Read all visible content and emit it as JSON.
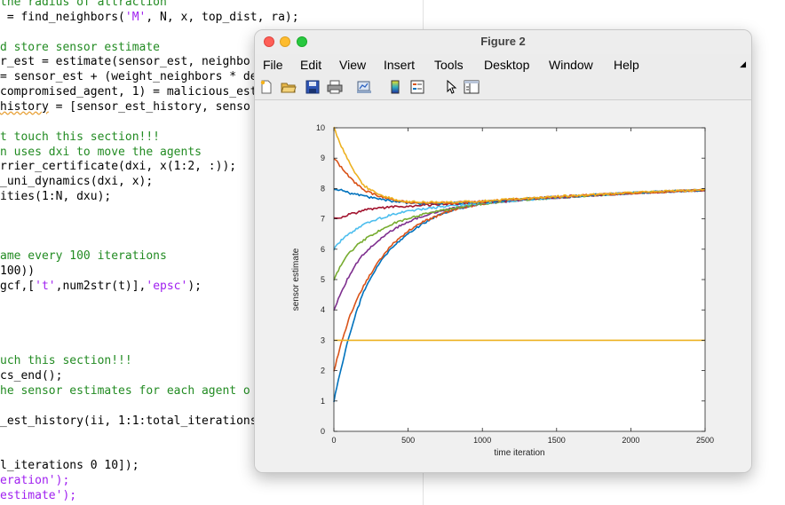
{
  "editor": {
    "lines": [
      {
        "segs": [
          {
            "t": "the radius of attraction",
            "c": "comment"
          }
        ]
      },
      {
        "segs": [
          {
            "t": " = find_neighbors("
          },
          {
            "t": "'M'",
            "c": "str"
          },
          {
            "t": ", N, x, top_dist, ra);"
          }
        ]
      },
      {
        "segs": [
          {
            "t": ""
          }
        ]
      },
      {
        "segs": [
          {
            "t": "d store sensor estimate",
            "c": "comment"
          }
        ]
      },
      {
        "segs": [
          {
            "t": "r_est = estimate(sensor_est, neighbo"
          }
        ]
      },
      {
        "segs": [
          {
            "t": "= sensor_est + (weight_neighbors * de"
          }
        ]
      },
      {
        "segs": [
          {
            "t": "compromised_agent, 1) = malicious_est"
          }
        ]
      },
      {
        "segs": [
          {
            "t": "history",
            "c": "squiggle"
          },
          {
            "t": " = [sensor_est_history, senso"
          }
        ]
      },
      {
        "segs": [
          {
            "t": ""
          }
        ]
      },
      {
        "segs": [
          {
            "t": "t touch this section!!!",
            "c": "comment"
          }
        ]
      },
      {
        "segs": [
          {
            "t": "n uses dxi to move the agents",
            "c": "comment"
          }
        ]
      },
      {
        "segs": [
          {
            "t": "rrier_certificate(dxi, x(1:2, :));"
          }
        ]
      },
      {
        "segs": [
          {
            "t": "_uni_dynamics(dxi, x);"
          }
        ]
      },
      {
        "segs": [
          {
            "t": "ities(1:N, dxu);"
          }
        ]
      },
      {
        "segs": [
          {
            "t": ""
          }
        ]
      },
      {
        "segs": [
          {
            "t": ""
          }
        ]
      },
      {
        "segs": [
          {
            "t": ""
          }
        ]
      },
      {
        "segs": [
          {
            "t": "ame every 100 iterations",
            "c": "comment"
          }
        ]
      },
      {
        "segs": [
          {
            "t": "100))"
          }
        ]
      },
      {
        "segs": [
          {
            "t": "gcf,["
          },
          {
            "t": "'t'",
            "c": "str"
          },
          {
            "t": ",num2str(t)],"
          },
          {
            "t": "'epsc'",
            "c": "str"
          },
          {
            "t": ");"
          }
        ]
      },
      {
        "segs": [
          {
            "t": ""
          }
        ]
      },
      {
        "segs": [
          {
            "t": ""
          }
        ]
      },
      {
        "segs": [
          {
            "t": ""
          }
        ]
      },
      {
        "segs": [
          {
            "t": ""
          }
        ]
      },
      {
        "segs": [
          {
            "t": "uch this section!!!",
            "c": "comment"
          }
        ]
      },
      {
        "segs": [
          {
            "t": "cs_end();"
          }
        ]
      },
      {
        "segs": [
          {
            "t": "he sensor estimates for each agent o",
            "c": "comment"
          }
        ]
      },
      {
        "segs": [
          {
            "t": ""
          }
        ]
      },
      {
        "segs": [
          {
            "t": "_est_history(ii, 1:1:total_iterations"
          }
        ]
      },
      {
        "segs": [
          {
            "t": ""
          }
        ]
      },
      {
        "segs": [
          {
            "t": ""
          }
        ]
      },
      {
        "segs": [
          {
            "t": "l_iterations 0 10]);"
          }
        ]
      },
      {
        "segs": [
          {
            "t": "eration');",
            "c": "str"
          }
        ]
      },
      {
        "segs": [
          {
            "t": "estimate');",
            "c": "str"
          }
        ]
      }
    ]
  },
  "window": {
    "title": "Figure 2",
    "menu": [
      "File",
      "Edit",
      "View",
      "Insert",
      "Tools",
      "Desktop",
      "Window",
      "Help"
    ],
    "menu_overflow_icon": "menu-overflow-arrow",
    "toolbar_icons": [
      "new-figure-icon",
      "open-file-icon",
      "save-icon",
      "print-icon",
      "link-plot-icon",
      "colorbar-icon",
      "legend-icon",
      "pointer-icon",
      "property-inspector-icon"
    ]
  },
  "chart_data": {
    "type": "line",
    "title": "",
    "xlabel": "time iteration",
    "ylabel": "sensor estimate",
    "xlim": [
      0,
      2500
    ],
    "ylim": [
      0,
      10
    ],
    "xticks": [
      0,
      500,
      1000,
      1500,
      2000,
      2500
    ],
    "yticks": [
      0,
      1,
      2,
      3,
      4,
      5,
      6,
      7,
      8,
      9,
      10
    ],
    "grid": false,
    "legend": "none",
    "series": [
      {
        "color": "#0072bd",
        "x": [
          0,
          50,
          100,
          150,
          200,
          300,
          400,
          500,
          600,
          700,
          800,
          1000,
          1200,
          1500,
          2000,
          2500
        ],
        "y": [
          1.0,
          2.1,
          3.1,
          3.9,
          4.6,
          5.5,
          6.1,
          6.5,
          6.85,
          7.1,
          7.3,
          7.5,
          7.6,
          7.7,
          7.85,
          7.95
        ]
      },
      {
        "color": "#d95319",
        "x": [
          0,
          50,
          100,
          150,
          200,
          300,
          400,
          500,
          600,
          700,
          800,
          1000,
          1200,
          1500,
          2000,
          2500
        ],
        "y": [
          2.0,
          2.9,
          3.7,
          4.3,
          4.8,
          5.6,
          6.2,
          6.6,
          6.9,
          7.1,
          7.3,
          7.5,
          7.6,
          7.7,
          7.85,
          7.95
        ]
      },
      {
        "color": "#edb120",
        "x": [
          0,
          2500
        ],
        "y": [
          3.0,
          3.0
        ]
      },
      {
        "color": "#7e2f8e",
        "x": [
          0,
          50,
          100,
          150,
          200,
          300,
          400,
          500,
          600,
          700,
          800,
          1000,
          1200,
          1500,
          2000,
          2500
        ],
        "y": [
          4.0,
          4.6,
          5.1,
          5.5,
          5.85,
          6.3,
          6.65,
          6.9,
          7.1,
          7.25,
          7.35,
          7.5,
          7.6,
          7.7,
          7.85,
          7.95
        ]
      },
      {
        "color": "#77ac30",
        "x": [
          0,
          50,
          100,
          150,
          200,
          300,
          400,
          500,
          600,
          700,
          800,
          1000,
          1200,
          1500,
          2000,
          2500
        ],
        "y": [
          5.0,
          5.5,
          5.85,
          6.1,
          6.3,
          6.6,
          6.85,
          7.0,
          7.15,
          7.25,
          7.35,
          7.5,
          7.6,
          7.7,
          7.85,
          7.95
        ]
      },
      {
        "color": "#4dbeee",
        "x": [
          0,
          50,
          100,
          150,
          200,
          300,
          400,
          500,
          600,
          700,
          800,
          1000,
          1200,
          1500,
          2000,
          2500
        ],
        "y": [
          6.0,
          6.3,
          6.5,
          6.65,
          6.8,
          7.0,
          7.15,
          7.25,
          7.32,
          7.38,
          7.43,
          7.52,
          7.6,
          7.7,
          7.85,
          7.95
        ]
      },
      {
        "color": "#a2142f",
        "x": [
          0,
          50,
          100,
          150,
          200,
          300,
          400,
          500,
          600,
          700,
          800,
          1000,
          1200,
          1500,
          2000,
          2500
        ],
        "y": [
          7.0,
          7.05,
          7.15,
          7.2,
          7.3,
          7.35,
          7.4,
          7.42,
          7.45,
          7.47,
          7.5,
          7.55,
          7.62,
          7.72,
          7.85,
          7.95
        ]
      },
      {
        "color": "#0072bd",
        "x": [
          0,
          50,
          100,
          150,
          200,
          300,
          400,
          500,
          600,
          700,
          800,
          1000,
          1200,
          1500,
          2000,
          2500
        ],
        "y": [
          8.0,
          7.95,
          7.85,
          7.8,
          7.75,
          7.65,
          7.58,
          7.52,
          7.5,
          7.5,
          7.52,
          7.56,
          7.63,
          7.72,
          7.85,
          7.95
        ]
      },
      {
        "color": "#d95319",
        "x": [
          0,
          50,
          100,
          150,
          200,
          300,
          400,
          500,
          600,
          700,
          800,
          1000,
          1200,
          1500,
          2000,
          2500
        ],
        "y": [
          9.0,
          8.7,
          8.4,
          8.15,
          7.95,
          7.75,
          7.62,
          7.55,
          7.52,
          7.52,
          7.53,
          7.57,
          7.64,
          7.73,
          7.85,
          7.95
        ]
      },
      {
        "color": "#edb120",
        "x": [
          0,
          50,
          100,
          150,
          200,
          300,
          400,
          500,
          600,
          700,
          800,
          1000,
          1200,
          1500,
          2000,
          2500
        ],
        "y": [
          10.0,
          9.4,
          8.9,
          8.45,
          8.1,
          7.8,
          7.65,
          7.57,
          7.55,
          7.54,
          7.55,
          7.58,
          7.65,
          7.74,
          7.86,
          7.96
        ]
      }
    ]
  }
}
